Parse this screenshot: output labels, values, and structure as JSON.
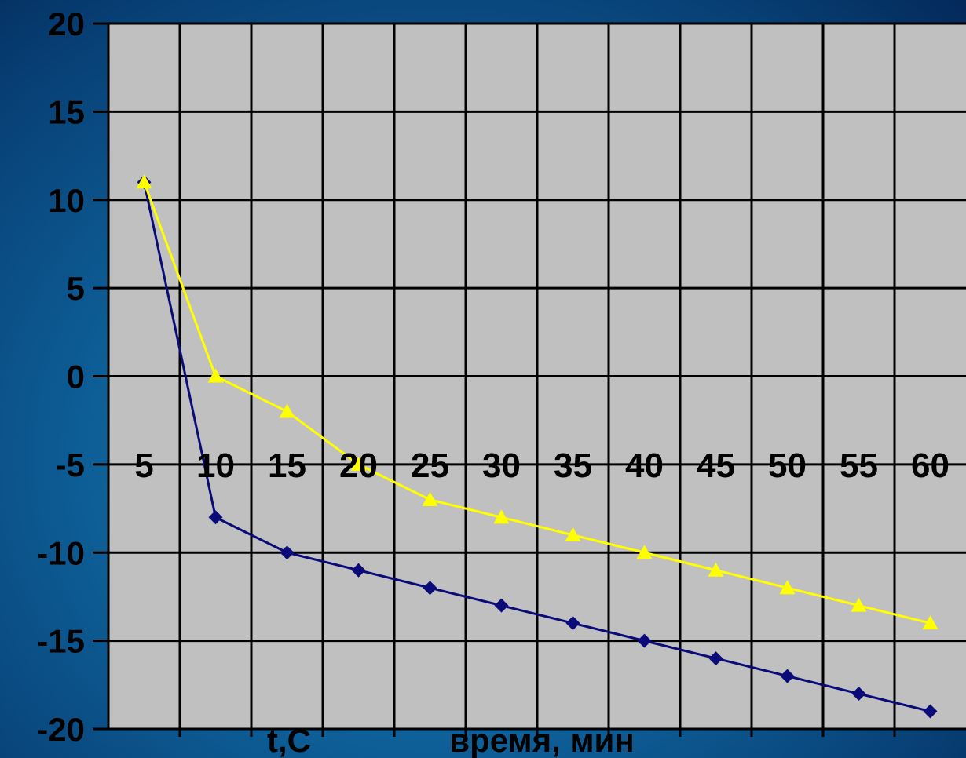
{
  "chart_data": {
    "type": "line",
    "x": [
      5,
      10,
      15,
      20,
      25,
      30,
      35,
      40,
      45,
      50,
      55,
      60
    ],
    "x_tick_labels": [
      "5",
      "10",
      "15",
      "20",
      "25",
      "30",
      "35",
      "40",
      "45",
      "50",
      "55",
      "60"
    ],
    "y_tick_labels": [
      "20",
      "15",
      "10",
      "5",
      "0",
      "-5",
      "-10",
      "-15",
      "-20"
    ],
    "ylim": [
      -20,
      20
    ],
    "y_ticks": [
      20,
      15,
      10,
      5,
      0,
      -5,
      -10,
      -15,
      -20
    ],
    "ylabel": "t,C",
    "xlabel": "время, мин",
    "grid": true,
    "background": "#c0c0c0",
    "series": [
      {
        "marker": "diamond",
        "color": "#0a0a78",
        "values": [
          11,
          -8,
          -10,
          -11,
          -12,
          -13,
          -14,
          -15,
          -16,
          -17,
          -18,
          -19
        ]
      },
      {
        "marker": "triangle",
        "color": "#ffff00",
        "values": [
          11,
          0,
          -2,
          -5,
          -7,
          -8,
          -9,
          -10,
          -11,
          -12,
          -13,
          -14
        ]
      }
    ]
  }
}
